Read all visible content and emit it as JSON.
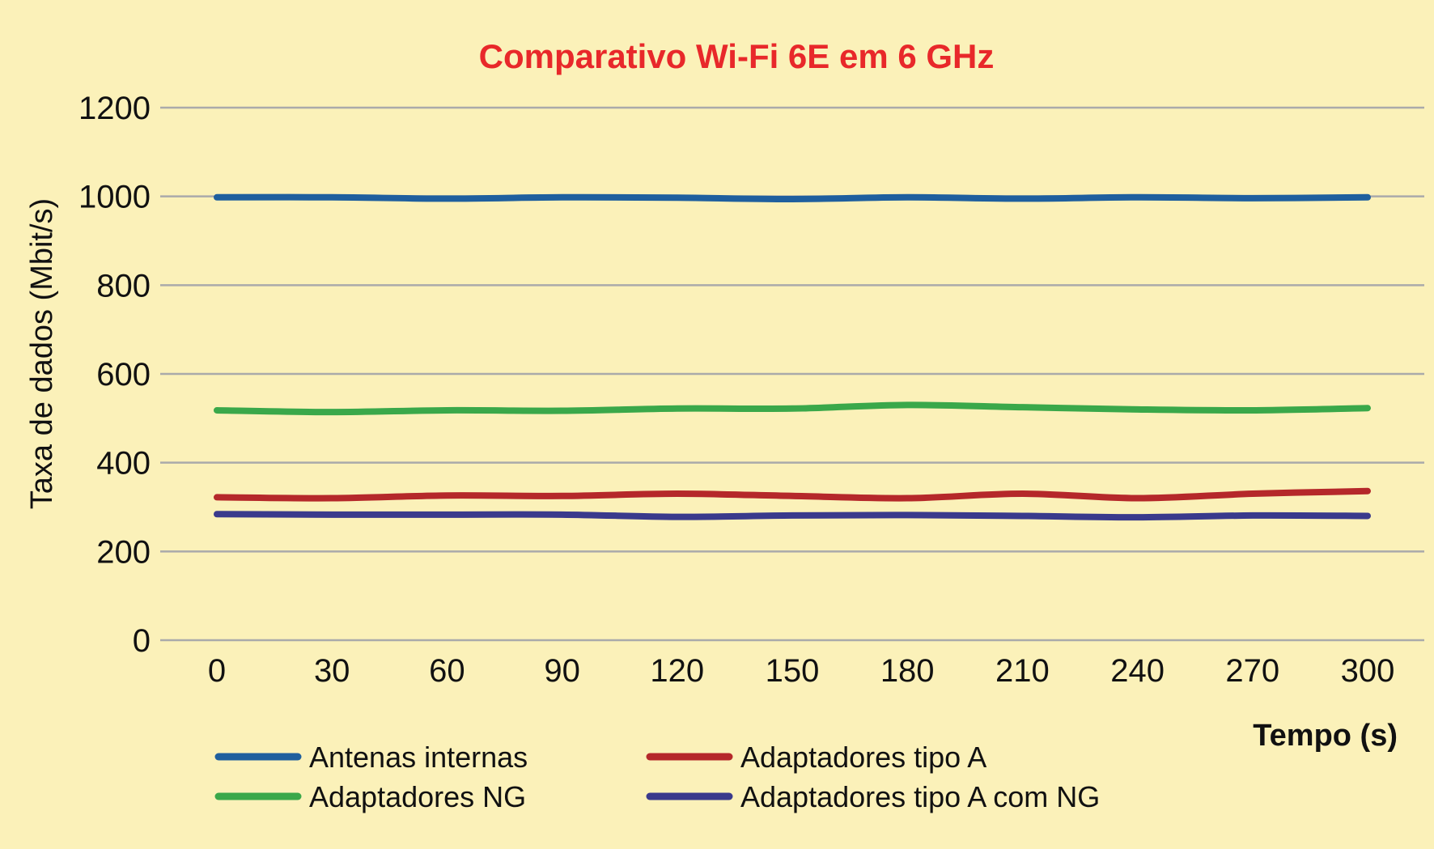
{
  "chart_data": {
    "type": "line",
    "title": "Comparativo Wi-Fi 6E em 6 GHz",
    "xlabel": "Tempo (s)",
    "ylabel": "Taxa de dados (Mbit/s)",
    "x": [
      0,
      30,
      60,
      90,
      120,
      150,
      180,
      210,
      240,
      270,
      300
    ],
    "x_tick_labels": [
      "0",
      "30",
      "60",
      "90",
      "120",
      "150",
      "180",
      "210",
      "240",
      "270",
      "300"
    ],
    "ylim": [
      0,
      1200
    ],
    "y_ticks": [
      0,
      200,
      400,
      600,
      800,
      1000,
      1200
    ],
    "y_tick_labels": [
      "0",
      "200",
      "400",
      "600",
      "800",
      "1000",
      "1200"
    ],
    "grid": "horizontal",
    "legend_position": "bottom",
    "series": [
      {
        "name": "Antenas internas",
        "color": "#1f5f9e",
        "values": [
          998,
          998,
          995,
          998,
          997,
          994,
          998,
          995,
          998,
          996,
          998
        ]
      },
      {
        "name": "Adaptadores tipo A",
        "color": "#b5282a",
        "values": [
          322,
          320,
          326,
          325,
          330,
          325,
          320,
          330,
          320,
          330,
          336
        ]
      },
      {
        "name": "Adaptadores NG",
        "color": "#3aa84a",
        "values": [
          518,
          514,
          518,
          517,
          522,
          522,
          530,
          525,
          520,
          518,
          523
        ]
      },
      {
        "name": "Adaptadores tipo A com NG",
        "color": "#3a3a8c",
        "values": [
          284,
          283,
          283,
          283,
          278,
          281,
          282,
          280,
          277,
          281,
          280
        ]
      }
    ]
  },
  "colors": {
    "background": "#fbf1b9",
    "title": "#e8282a",
    "grid": "#aaaaaa"
  }
}
